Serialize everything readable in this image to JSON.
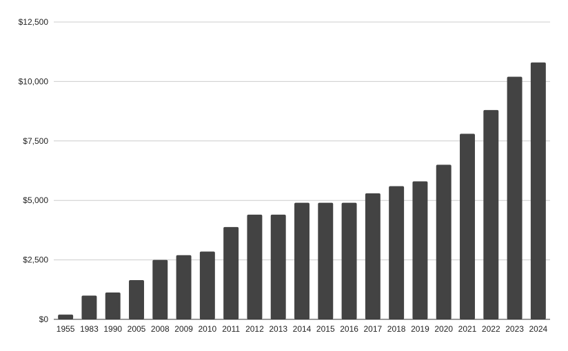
{
  "chart_data": {
    "type": "bar",
    "title": "",
    "xlabel": "",
    "ylabel": "",
    "categories": [
      "1955",
      "1983",
      "1990",
      "2005",
      "2008",
      "2009",
      "2010",
      "2011",
      "2012",
      "2013",
      "2014",
      "2015",
      "2016",
      "2017",
      "2018",
      "2019",
      "2020",
      "2021",
      "2022",
      "2023",
      "2024"
    ],
    "values": [
      200,
      1000,
      1130,
      1650,
      2500,
      2700,
      2850,
      3880,
      4400,
      4400,
      4900,
      4900,
      4900,
      5300,
      5600,
      5800,
      6500,
      7800,
      8800,
      10200,
      10800
    ],
    "ylim": [
      0,
      12500
    ],
    "yticks": [
      0,
      2500,
      5000,
      7500,
      10000,
      12500
    ],
    "ytick_labels": [
      "$0",
      "$2,500",
      "$5,000",
      "$7,500",
      "$10,000",
      "$12,500"
    ],
    "grid": true,
    "legend": "none",
    "bar_color": "#434343",
    "grid_color": "#cccccc",
    "axis_color": "#333333"
  }
}
